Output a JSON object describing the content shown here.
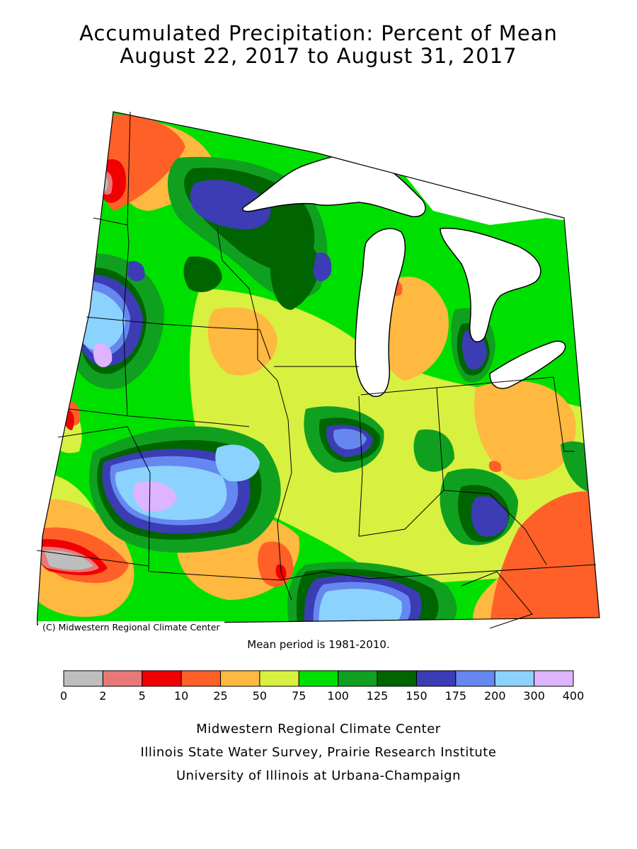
{
  "title_line1": "Accumulated Precipitation: Percent of Mean",
  "title_line2": "August 22, 2017 to August 31, 2017",
  "copyright": "(C) Midwestern Regional Climate Center",
  "mean_period": "Mean period is 1981-2010.",
  "legend": {
    "ticks": [
      "0",
      "2",
      "5",
      "10",
      "25",
      "50",
      "75",
      "100",
      "125",
      "150",
      "175",
      "200",
      "300",
      "400"
    ],
    "colors": [
      "#bebebe",
      "#e87878",
      "#f00000",
      "#ff6028",
      "#ffb840",
      "#d8f040",
      "#00e000",
      "#10a020",
      "#006400",
      "#3c3cb4",
      "#6488f0",
      "#8cd2ff",
      "#dcb4ff"
    ]
  },
  "colors": {
    "water": "#ffffff",
    "outline": "#000000"
  },
  "credits": [
    "Midwestern Regional Climate Center",
    "Illinois State Water Survey, Prairie Research Institute",
    "University of Illinois at Urbana-Champaign"
  ]
}
